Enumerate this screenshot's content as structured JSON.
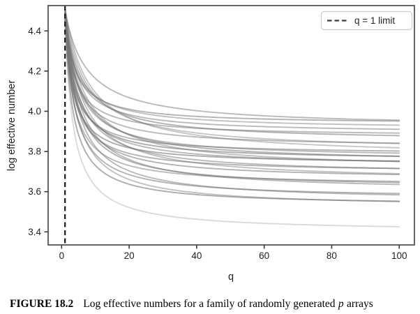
{
  "caption": {
    "label": "FIGURE 18.2",
    "text": "Log effective numbers for a family of randomly generated",
    "p": "p",
    "suffix": "arrays"
  },
  "style": {
    "background": "#ffffff",
    "spine_color": "#555555",
    "tick_color": "#3a3a3a",
    "text_color": "#1f1f1f",
    "curve_color": "#767676",
    "light_curve_color": "#9f9f9f",
    "dashed_line_color": "#1a1a1a",
    "legend_border_color": "#cccccc",
    "legend_fill": "#ffffff"
  },
  "chart_data": {
    "type": "line",
    "title": "",
    "xlabel": "q",
    "ylabel": "log effective number",
    "xlim": [
      -4,
      104.5
    ],
    "ylim": [
      3.335,
      4.526
    ],
    "grid": false,
    "xticks": [
      {
        "v": 0,
        "label": "0"
      },
      {
        "v": 20,
        "label": "20"
      },
      {
        "v": 40,
        "label": "40"
      },
      {
        "v": 60,
        "label": "60"
      },
      {
        "v": 80,
        "label": "80"
      },
      {
        "v": 100,
        "label": "100"
      }
    ],
    "yticks": [
      {
        "v": 3.4,
        "label": "3.4"
      },
      {
        "v": 3.6,
        "label": "3.6"
      },
      {
        "v": 3.8,
        "label": "3.8"
      },
      {
        "v": 4.0,
        "label": "4.0"
      },
      {
        "v": 4.2,
        "label": "4.2"
      },
      {
        "v": 4.4,
        "label": "4.4"
      }
    ],
    "legend": {
      "position": "upper right",
      "entries": [
        {
          "label": "q = 1 limit",
          "style": "dashed"
        }
      ]
    },
    "vline": {
      "x": 1,
      "style": "dashed",
      "meaning": "q = 1 limit"
    },
    "x_range_of_curves": [
      1,
      100
    ],
    "curve_model": "y(q) = a + (s - a) * (1 + r) / (q + r); s = value at q=1, a = asymptote as q grows, r = decay rate",
    "curves": [
      {
        "s": 4.47,
        "a": 3.935,
        "r": 2.1,
        "alpha": 0.55
      },
      {
        "s": 4.5,
        "a": 3.92,
        "r": 5.5,
        "alpha": 0.5
      },
      {
        "s": 4.46,
        "a": 3.91,
        "r": 2.9,
        "alpha": 0.45
      },
      {
        "s": 4.49,
        "a": 3.89,
        "r": 2.5,
        "alpha": 0.5
      },
      {
        "s": 4.48,
        "a": 3.875,
        "r": 1.8,
        "alpha": 0.5
      },
      {
        "s": 4.5,
        "a": 3.85,
        "r": 3.6,
        "alpha": 0.55
      },
      {
        "s": 4.47,
        "a": 3.82,
        "r": 2.4,
        "alpha": 0.5
      },
      {
        "s": 4.51,
        "a": 3.8,
        "r": 4.8,
        "alpha": 0.42
      },
      {
        "s": 4.46,
        "a": 3.785,
        "r": 1.6,
        "alpha": 0.55
      },
      {
        "s": 4.52,
        "a": 3.77,
        "r": 5.8,
        "alpha": 0.42
      },
      {
        "s": 4.49,
        "a": 3.765,
        "r": 2.8,
        "alpha": 0.5
      },
      {
        "s": 4.47,
        "a": 3.755,
        "r": 2.0,
        "alpha": 0.6
      },
      {
        "s": 4.5,
        "a": 3.745,
        "r": 3.3,
        "alpha": 0.55
      },
      {
        "s": 4.45,
        "a": 3.735,
        "r": 1.5,
        "alpha": 0.6
      },
      {
        "s": 4.48,
        "a": 3.725,
        "r": 2.5,
        "alpha": 0.5
      },
      {
        "s": 4.51,
        "a": 3.71,
        "r": 4.2,
        "alpha": 0.45
      },
      {
        "s": 4.46,
        "a": 3.695,
        "r": 1.7,
        "alpha": 0.55
      },
      {
        "s": 4.49,
        "a": 3.685,
        "r": 2.9,
        "alpha": 0.5
      },
      {
        "s": 4.47,
        "a": 3.66,
        "r": 2.2,
        "alpha": 0.55
      },
      {
        "s": 4.5,
        "a": 3.65,
        "r": 3.8,
        "alpha": 0.45
      },
      {
        "s": 4.46,
        "a": 3.63,
        "r": 1.6,
        "alpha": 0.5
      },
      {
        "s": 4.48,
        "a": 3.615,
        "r": 2.6,
        "alpha": 0.55
      },
      {
        "s": 4.5,
        "a": 3.6,
        "r": 3.1,
        "alpha": 0.5
      },
      {
        "s": 4.47,
        "a": 3.565,
        "r": 1.9,
        "alpha": 0.55
      },
      {
        "s": 4.49,
        "a": 3.55,
        "r": 2.7,
        "alpha": 0.5
      },
      {
        "s": 4.45,
        "a": 3.53,
        "r": 1.5,
        "alpha": 0.6
      },
      {
        "s": 4.47,
        "a": 3.52,
        "r": 2.3,
        "alpha": 0.45
      },
      {
        "s": 4.46,
        "a": 3.4,
        "r": 1.45,
        "alpha": 0.38,
        "light": true
      }
    ]
  }
}
